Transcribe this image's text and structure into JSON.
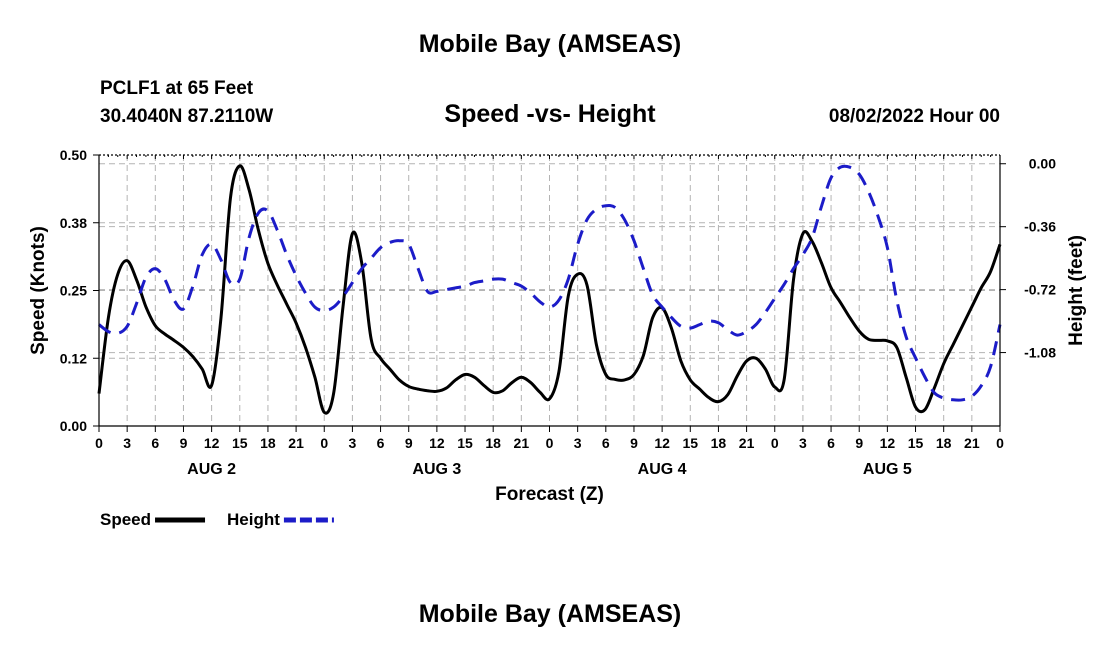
{
  "header": {
    "title": "Mobile Bay (AMSEAS)",
    "station": "PCLF1 at 65 Feet",
    "coords": "30.4040N  87.2110W",
    "subtitle": "Speed -vs- Height",
    "datetime": "08/02/2022 Hour 00"
  },
  "footer": {
    "title": "Mobile Bay (AMSEAS)"
  },
  "colors": {
    "speed": "#000000",
    "height": "#1c1cc8",
    "grid": "#b4b4b4"
  },
  "chart_data": {
    "type": "line",
    "title": "Speed -vs- Height",
    "xlabel": "Forecast (Z)",
    "ylabel_left": "Speed (Knots)",
    "ylabel_right": "Height (feet)",
    "xlim": [
      0,
      96
    ],
    "ylim_left": [
      0,
      0.5
    ],
    "ylim_right": [
      -1.5,
      0.05
    ],
    "left_ticks": [
      "0.00",
      "0.12",
      "0.25",
      "0.38",
      "0.50"
    ],
    "left_tick_values": [
      0,
      0.125,
      0.25,
      0.375,
      0.5
    ],
    "right_ticks": [
      "0.00",
      "-0.36",
      "-0.72",
      "-1.08"
    ],
    "right_tick_values": [
      0,
      -0.36,
      -0.72,
      -1.08
    ],
    "x_tick_labels": [
      "0",
      "3",
      "6",
      "9",
      "12",
      "15",
      "18",
      "21",
      "0",
      "3",
      "6",
      "9",
      "12",
      "15",
      "18",
      "21",
      "0",
      "3",
      "6",
      "9",
      "12",
      "15",
      "18",
      "21",
      "0",
      "3",
      "6",
      "9",
      "12",
      "15",
      "18",
      "21",
      "0"
    ],
    "day_labels": [
      "AUG 2",
      "AUG 3",
      "AUG 4",
      "AUG 5"
    ],
    "grid": true,
    "legend_position": "bottom-left",
    "series": [
      {
        "name": "Speed",
        "axis": "left",
        "style": "solid",
        "points": [
          [
            0,
            0.06
          ],
          [
            1,
            0.2
          ],
          [
            2,
            0.28
          ],
          [
            3,
            0.305
          ],
          [
            4,
            0.27
          ],
          [
            5,
            0.22
          ],
          [
            6,
            0.185
          ],
          [
            7,
            0.17
          ],
          [
            8,
            0.158
          ],
          [
            9,
            0.145
          ],
          [
            10,
            0.128
          ],
          [
            11,
            0.105
          ],
          [
            12,
            0.075
          ],
          [
            13,
            0.2
          ],
          [
            14,
            0.42
          ],
          [
            15,
            0.48
          ],
          [
            16,
            0.435
          ],
          [
            17,
            0.36
          ],
          [
            18,
            0.3
          ],
          [
            19,
            0.26
          ],
          [
            20,
            0.225
          ],
          [
            21,
            0.19
          ],
          [
            22,
            0.145
          ],
          [
            23,
            0.09
          ],
          [
            24,
            0.025
          ],
          [
            25,
            0.06
          ],
          [
            26,
            0.22
          ],
          [
            27,
            0.355
          ],
          [
            28,
            0.3
          ],
          [
            29,
            0.16
          ],
          [
            30,
            0.125
          ],
          [
            31,
            0.105
          ],
          [
            32,
            0.085
          ],
          [
            33,
            0.073
          ],
          [
            34,
            0.068
          ],
          [
            35,
            0.065
          ],
          [
            36,
            0.064
          ],
          [
            37,
            0.07
          ],
          [
            38,
            0.085
          ],
          [
            39,
            0.095
          ],
          [
            40,
            0.09
          ],
          [
            41,
            0.075
          ],
          [
            42,
            0.062
          ],
          [
            43,
            0.065
          ],
          [
            44,
            0.08
          ],
          [
            45,
            0.09
          ],
          [
            46,
            0.08
          ],
          [
            47,
            0.062
          ],
          [
            48,
            0.05
          ],
          [
            49,
            0.1
          ],
          [
            50,
            0.24
          ],
          [
            51,
            0.28
          ],
          [
            52,
            0.26
          ],
          [
            53,
            0.15
          ],
          [
            54,
            0.095
          ],
          [
            55,
            0.086
          ],
          [
            56,
            0.085
          ],
          [
            57,
            0.095
          ],
          [
            58,
            0.13
          ],
          [
            59,
            0.2
          ],
          [
            60,
            0.218
          ],
          [
            61,
            0.18
          ],
          [
            62,
            0.12
          ],
          [
            63,
            0.085
          ],
          [
            64,
            0.068
          ],
          [
            65,
            0.052
          ],
          [
            66,
            0.045
          ],
          [
            67,
            0.058
          ],
          [
            68,
            0.092
          ],
          [
            69,
            0.12
          ],
          [
            70,
            0.125
          ],
          [
            71,
            0.105
          ],
          [
            72,
            0.072
          ],
          [
            73,
            0.085
          ],
          [
            74,
            0.27
          ],
          [
            75,
            0.355
          ],
          [
            76,
            0.34
          ],
          [
            77,
            0.3
          ],
          [
            78,
            0.255
          ],
          [
            79,
            0.228
          ],
          [
            80,
            0.2
          ],
          [
            81,
            0.175
          ],
          [
            82,
            0.16
          ],
          [
            83,
            0.158
          ],
          [
            84,
            0.157
          ],
          [
            85,
            0.145
          ],
          [
            86,
            0.09
          ],
          [
            87,
            0.035
          ],
          [
            88,
            0.03
          ],
          [
            89,
            0.07
          ],
          [
            90,
            0.115
          ],
          [
            91,
            0.15
          ],
          [
            92,
            0.185
          ],
          [
            93,
            0.22
          ],
          [
            94,
            0.255
          ],
          [
            95,
            0.285
          ],
          [
            96,
            0.335
          ]
        ]
      },
      {
        "name": "Height",
        "axis": "right",
        "style": "dashed",
        "points": [
          [
            0,
            -0.92
          ],
          [
            1,
            -0.96
          ],
          [
            2,
            -0.97
          ],
          [
            3,
            -0.93
          ],
          [
            4,
            -0.8
          ],
          [
            5,
            -0.65
          ],
          [
            6,
            -0.6
          ],
          [
            7,
            -0.66
          ],
          [
            8,
            -0.78
          ],
          [
            9,
            -0.83
          ],
          [
            10,
            -0.7
          ],
          [
            11,
            -0.52
          ],
          [
            12,
            -0.46
          ],
          [
            13,
            -0.55
          ],
          [
            14,
            -0.68
          ],
          [
            15,
            -0.66
          ],
          [
            16,
            -0.42
          ],
          [
            17,
            -0.28
          ],
          [
            18,
            -0.27
          ],
          [
            19,
            -0.38
          ],
          [
            20,
            -0.52
          ],
          [
            21,
            -0.64
          ],
          [
            22,
            -0.74
          ],
          [
            23,
            -0.82
          ],
          [
            24,
            -0.84
          ],
          [
            25,
            -0.82
          ],
          [
            26,
            -0.76
          ],
          [
            27,
            -0.68
          ],
          [
            28,
            -0.6
          ],
          [
            29,
            -0.54
          ],
          [
            30,
            -0.48
          ],
          [
            31,
            -0.45
          ],
          [
            32,
            -0.44
          ],
          [
            33,
            -0.46
          ],
          [
            34,
            -0.6
          ],
          [
            35,
            -0.73
          ],
          [
            36,
            -0.73
          ],
          [
            37,
            -0.72
          ],
          [
            38,
            -0.71
          ],
          [
            39,
            -0.7
          ],
          [
            40,
            -0.68
          ],
          [
            41,
            -0.67
          ],
          [
            42,
            -0.66
          ],
          [
            43,
            -0.66
          ],
          [
            44,
            -0.68
          ],
          [
            45,
            -0.7
          ],
          [
            46,
            -0.74
          ],
          [
            47,
            -0.79
          ],
          [
            48,
            -0.82
          ],
          [
            49,
            -0.78
          ],
          [
            50,
            -0.66
          ],
          [
            51,
            -0.46
          ],
          [
            52,
            -0.32
          ],
          [
            53,
            -0.26
          ],
          [
            54,
            -0.24
          ],
          [
            55,
            -0.25
          ],
          [
            56,
            -0.32
          ],
          [
            57,
            -0.44
          ],
          [
            58,
            -0.6
          ],
          [
            59,
            -0.75
          ],
          [
            60,
            -0.82
          ],
          [
            61,
            -0.88
          ],
          [
            62,
            -0.93
          ],
          [
            63,
            -0.94
          ],
          [
            64,
            -0.92
          ],
          [
            65,
            -0.9
          ],
          [
            66,
            -0.91
          ],
          [
            67,
            -0.95
          ],
          [
            68,
            -0.98
          ],
          [
            69,
            -0.96
          ],
          [
            70,
            -0.92
          ],
          [
            71,
            -0.85
          ],
          [
            72,
            -0.77
          ],
          [
            73,
            -0.69
          ],
          [
            74,
            -0.6
          ],
          [
            75,
            -0.52
          ],
          [
            76,
            -0.42
          ],
          [
            77,
            -0.24
          ],
          [
            78,
            -0.08
          ],
          [
            79,
            -0.02
          ],
          [
            80,
            -0.02
          ],
          [
            81,
            -0.06
          ],
          [
            82,
            -0.16
          ],
          [
            83,
            -0.3
          ],
          [
            84,
            -0.48
          ],
          [
            85,
            -0.78
          ],
          [
            86,
            -0.99
          ],
          [
            87,
            -1.11
          ],
          [
            88,
            -1.22
          ],
          [
            89,
            -1.31
          ],
          [
            90,
            -1.34
          ],
          [
            91,
            -1.35
          ],
          [
            92,
            -1.35
          ],
          [
            93,
            -1.33
          ],
          [
            94,
            -1.27
          ],
          [
            95,
            -1.16
          ],
          [
            96,
            -0.92
          ]
        ]
      }
    ],
    "legend": [
      {
        "label": "Speed",
        "series": "Speed"
      },
      {
        "label": "Height",
        "series": "Height"
      }
    ]
  }
}
